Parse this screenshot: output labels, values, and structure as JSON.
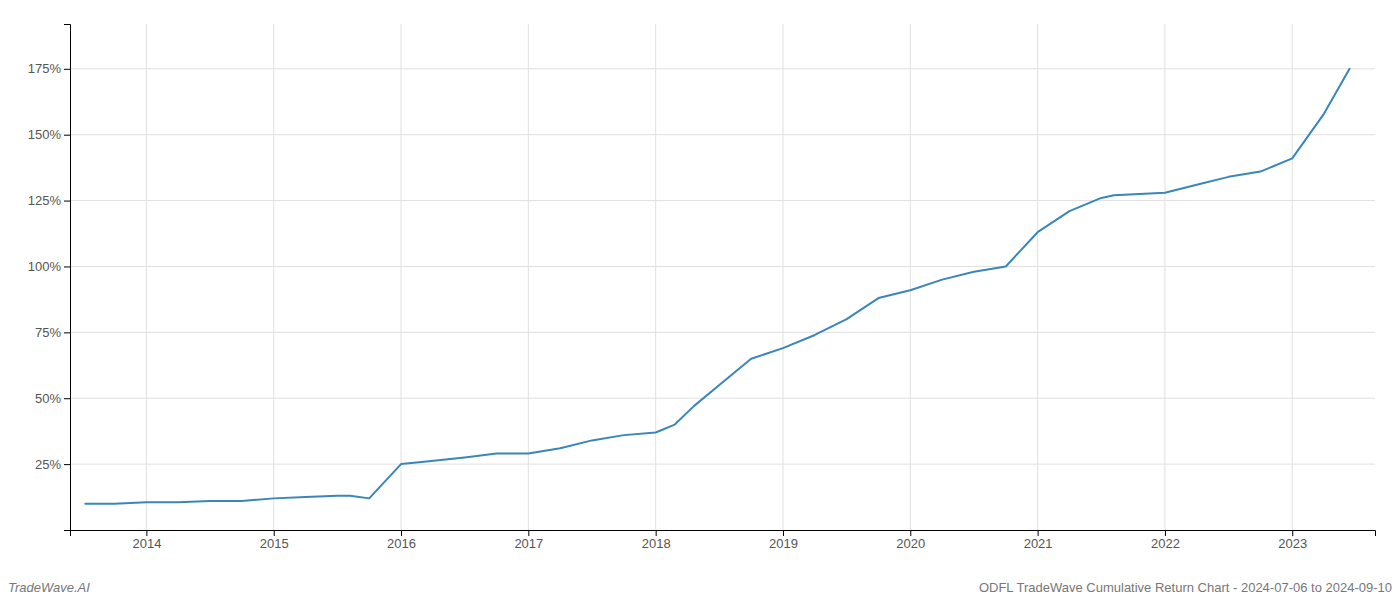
{
  "chart_data": {
    "type": "line",
    "x": [
      2013.52,
      2013.6,
      2013.75,
      2014.0,
      2014.25,
      2014.5,
      2014.75,
      2015.0,
      2015.25,
      2015.5,
      2015.6,
      2015.75,
      2016.0,
      2016.2,
      2016.5,
      2016.75,
      2017.0,
      2017.25,
      2017.5,
      2017.75,
      2018.0,
      2018.15,
      2018.3,
      2018.5,
      2018.75,
      2019.0,
      2019.25,
      2019.5,
      2019.75,
      2020.0,
      2020.25,
      2020.5,
      2020.75,
      2021.0,
      2021.25,
      2021.5,
      2021.6,
      2022.0,
      2022.25,
      2022.5,
      2022.75,
      2023.0,
      2023.25,
      2023.45
    ],
    "values": [
      10,
      10,
      10,
      10.5,
      10.5,
      11,
      11,
      12,
      12.5,
      13,
      13,
      12,
      25,
      26,
      27.5,
      29,
      29,
      31,
      34,
      36,
      37,
      40,
      47,
      55,
      65,
      69,
      74,
      80,
      88,
      91,
      95,
      98,
      100,
      113,
      121,
      126,
      127,
      128,
      131,
      134,
      136,
      141,
      158,
      175
    ],
    "color": "#3a86b8",
    "xlim": [
      2013.4,
      2023.65
    ],
    "ylim": [
      0,
      192
    ],
    "xticks": [
      2014,
      2015,
      2016,
      2017,
      2018,
      2019,
      2020,
      2021,
      2022,
      2023
    ],
    "yticks": [
      {
        "value": 25,
        "label": "25%"
      },
      {
        "value": 50,
        "label": "50%"
      },
      {
        "value": 75,
        "label": "75%"
      },
      {
        "value": 100,
        "label": "100%"
      },
      {
        "value": 125,
        "label": "125%"
      },
      {
        "value": 150,
        "label": "150%"
      },
      {
        "value": 175,
        "label": "175%"
      }
    ],
    "grid": true,
    "annotations": [
      "TradeWave.AI",
      "ODFL TradeWave Cumulative Return Chart - 2024-07-06 to 2024-09-10"
    ]
  }
}
